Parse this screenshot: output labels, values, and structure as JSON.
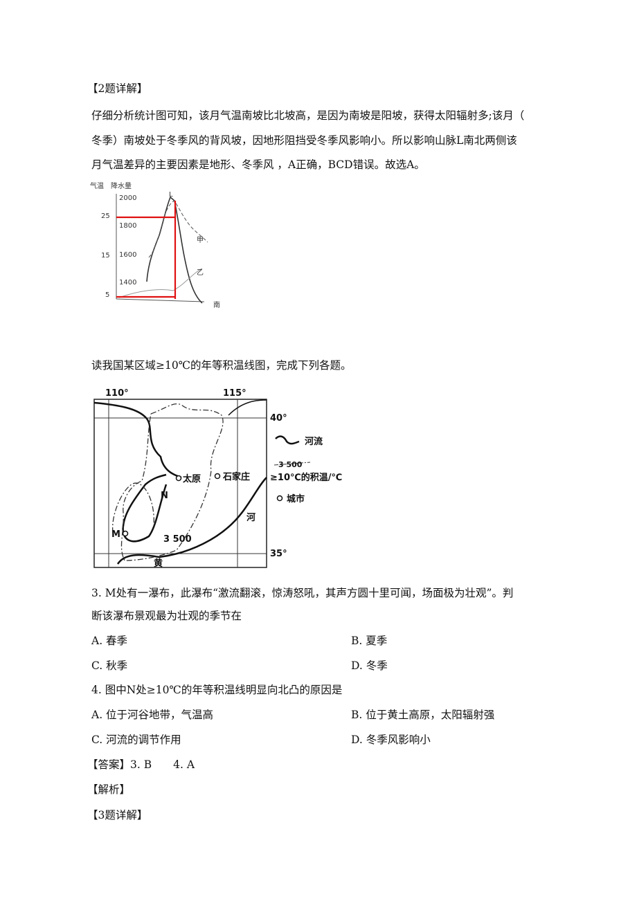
{
  "section2_heading": "【2题详解】",
  "section2_lines": [
    "仔细分析统计图可知，该月气温南坡比北坡高，是因为南坡是阳坡，获得太阳辐射多;该月（",
    "冬季）南坡处于冬季风的背风坡，因地形阻挡受冬季风影响小。所以影响山脉L南北两侧该",
    "月气温差异的主要因素是地形、冬季风 ，A正确，BCD错误。故选A。"
  ],
  "figure1": {
    "temp_label": "气温",
    "precip_label": "降水量",
    "precip_ticks": [
      "2000",
      "1800",
      "1600",
      "1400"
    ],
    "temp_ticks": [
      "25",
      "15",
      "5"
    ],
    "peak_label": "L",
    "line_a_label": "甲",
    "line_b_label": "乙",
    "direction_label": "南"
  },
  "intro": "读我国某区域≥10℃的年等积温线图，完成下列各题。",
  "map": {
    "lon_labels": [
      "110°",
      "115°"
    ],
    "lat_labels": [
      "40°",
      "35°"
    ],
    "cities": [
      "太原",
      "石家庄"
    ],
    "point_n": "N",
    "point_m": "M",
    "isoline_label": "3 500",
    "river_label_1": "河",
    "river_label_2": "黄",
    "legend": {
      "river": "河流",
      "isoline_sample": "3 500",
      "isoline": "≥10℃的积温/℃",
      "city": "城市"
    }
  },
  "q3": {
    "lines": [
      "3. M处有一瀑布，此瀑布“激流翻滚，惊涛怒吼，其声方圆十里可闻，场面极为壮观”。判",
      "断该瀑布景观最为壮观的季节在"
    ],
    "options": [
      "A. 春季",
      "B. 夏季",
      "C. 秋季",
      "D. 冬季"
    ]
  },
  "q4": {
    "stem": "4. 图中N处≥10℃的年等积温线明显向北凸的原因是",
    "options": [
      "A. 位于河谷地带，气温高",
      "B. 位于黄土高原，太阳辐射强",
      "C. 河流的调节作用",
      "D. 冬季风影响小"
    ]
  },
  "answer": "【答案】3. B　　4. A",
  "analysis": "【解析】",
  "section3_heading": "【3题详解】"
}
